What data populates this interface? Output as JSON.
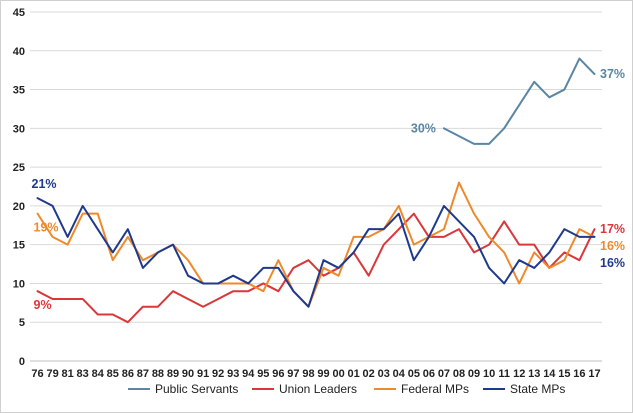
{
  "chart_data": {
    "type": "line",
    "title": "",
    "xlabel": "",
    "ylabel": "",
    "ylim": [
      0,
      45
    ],
    "yticks": [
      0,
      5,
      10,
      15,
      20,
      25,
      30,
      35,
      40,
      45
    ],
    "grid": "horizontal",
    "legend": "bottom",
    "categories": [
      "76",
      "79",
      "81",
      "83",
      "84",
      "85",
      "86",
      "87",
      "88",
      "89",
      "90",
      "91",
      "92",
      "93",
      "94",
      "95",
      "96",
      "97",
      "98",
      "99",
      "00",
      "01",
      "02",
      "03",
      "04",
      "05",
      "06",
      "07",
      "08",
      "09",
      "10",
      "11",
      "12",
      "13",
      "14",
      "15",
      "16",
      "17"
    ],
    "series": [
      {
        "name": "Public Servants",
        "color": "#5a86a3",
        "values": [
          null,
          null,
          null,
          null,
          null,
          null,
          null,
          null,
          null,
          null,
          null,
          null,
          null,
          null,
          null,
          null,
          null,
          null,
          null,
          null,
          null,
          null,
          null,
          null,
          null,
          null,
          null,
          30,
          29,
          28,
          28,
          30,
          33,
          36,
          34,
          35,
          39,
          37
        ],
        "labels": [
          {
            "index": 27,
            "text": "30%",
            "side": "left"
          },
          {
            "index": 37,
            "text": "37%",
            "side": "right"
          }
        ]
      },
      {
        "name": "Union Leaders",
        "color": "#d9373a",
        "values": [
          9,
          8,
          8,
          8,
          6,
          6,
          5,
          7,
          7,
          9,
          8,
          7,
          8,
          9,
          9,
          10,
          9,
          12,
          13,
          11,
          12,
          14,
          11,
          15,
          17,
          19,
          16,
          16,
          17,
          14,
          15,
          18,
          15,
          15,
          12,
          14,
          13,
          17
        ],
        "labels": [
          {
            "index": 0,
            "text": "9%",
            "side": "below"
          },
          {
            "index": 37,
            "text": "17%",
            "side": "right"
          }
        ]
      },
      {
        "name": "Federal MPs",
        "color": "#ee8a2c",
        "values": [
          19,
          16,
          15,
          19,
          19,
          13,
          16,
          13,
          14,
          15,
          13,
          10,
          10,
          10,
          10,
          9,
          13,
          9,
          7,
          12,
          11,
          16,
          16,
          17,
          20,
          15,
          16,
          17,
          23,
          19,
          16,
          14,
          10,
          14,
          12,
          13,
          17,
          16
        ],
        "labels": [
          {
            "index": 0,
            "text": "19%",
            "side": "below"
          },
          {
            "index": 37,
            "text": "16%",
            "side": "right"
          }
        ]
      },
      {
        "name": "State MPs",
        "color": "#1f3a8c",
        "values": [
          21,
          20,
          16,
          20,
          17,
          14,
          17,
          12,
          14,
          15,
          11,
          10,
          10,
          11,
          10,
          12,
          12,
          9,
          7,
          13,
          12,
          14,
          17,
          17,
          19,
          13,
          16,
          20,
          18,
          16,
          12,
          10,
          13,
          12,
          14,
          17,
          16,
          16
        ],
        "labels": [
          {
            "index": 0,
            "text": "21%",
            "side": "above"
          },
          {
            "index": 37,
            "text": "16%",
            "side": "right"
          }
        ]
      }
    ]
  },
  "legend": {
    "items": [
      {
        "label": "Public Servants",
        "color": "#5a86a3"
      },
      {
        "label": "Union Leaders",
        "color": "#d9373a"
      },
      {
        "label": "Federal MPs",
        "color": "#ee8a2c"
      },
      {
        "label": "State MPs",
        "color": "#1f3a8c"
      }
    ]
  },
  "colors": {
    "gridline": "#d9d9d9",
    "axis": "#bfbfbf",
    "border": "#cfcfcf"
  }
}
